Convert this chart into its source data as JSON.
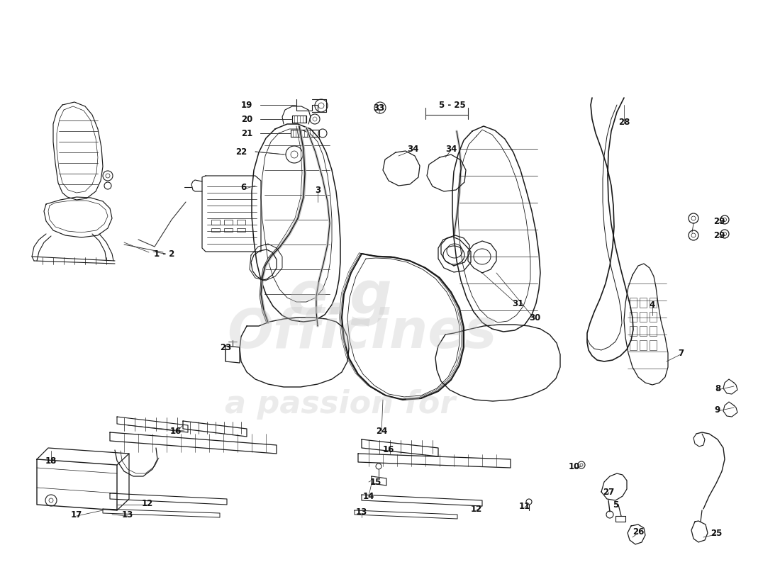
{
  "background_color": "#ffffff",
  "line_color": "#1a1a1a",
  "label_color": "#111111",
  "watermark1": "e.g",
  "watermark2": "Officines",
  "watermark3": "a passion for",
  "watermark_color": "#c8c8c8",
  "labels": [
    [
      "1 - 2",
      232,
      358
    ],
    [
      "3",
      448,
      268
    ],
    [
      "4",
      920,
      430
    ],
    [
      "5",
      868,
      712
    ],
    [
      "5 - 25",
      638,
      148
    ],
    [
      "6",
      343,
      265
    ],
    [
      "7",
      960,
      498
    ],
    [
      "8",
      1012,
      548
    ],
    [
      "9",
      1012,
      578
    ],
    [
      "10",
      810,
      658
    ],
    [
      "11",
      740,
      714
    ],
    [
      "12",
      672,
      718
    ],
    [
      "12",
      208,
      710
    ],
    [
      "13",
      510,
      722
    ],
    [
      "13",
      180,
      726
    ],
    [
      "14",
      520,
      700
    ],
    [
      "15",
      530,
      680
    ],
    [
      "16",
      248,
      608
    ],
    [
      "16",
      548,
      634
    ],
    [
      "17",
      108,
      726
    ],
    [
      "18",
      72,
      650
    ],
    [
      "19",
      348,
      148
    ],
    [
      "20",
      348,
      168
    ],
    [
      "21",
      348,
      188
    ],
    [
      "22",
      340,
      214
    ],
    [
      "23",
      318,
      490
    ],
    [
      "24",
      538,
      608
    ],
    [
      "25",
      1010,
      752
    ],
    [
      "26",
      900,
      750
    ],
    [
      "27",
      858,
      694
    ],
    [
      "28",
      880,
      172
    ],
    [
      "29",
      1014,
      312
    ],
    [
      "29",
      1014,
      332
    ],
    [
      "30",
      754,
      448
    ],
    [
      "31",
      730,
      428
    ],
    [
      "33",
      534,
      152
    ],
    [
      "34",
      582,
      210
    ],
    [
      "34",
      636,
      210
    ]
  ]
}
